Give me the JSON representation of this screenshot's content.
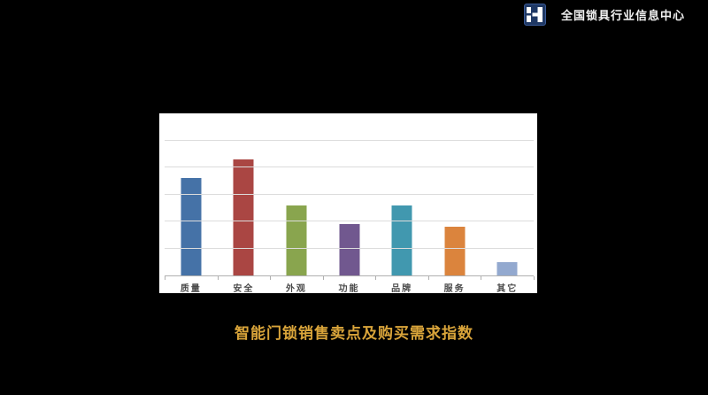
{
  "header": {
    "logo_text": "全国锁具行业信息中心",
    "logo_icon": "stylized-H-mark"
  },
  "caption": "智能门锁销售卖点及购买需求指数",
  "colors": {
    "background": "#000000",
    "panel": "#ffffff",
    "caption_text": "#d9a43a",
    "logo_square": "#1f3864",
    "logo_glyph": "#ffffff",
    "gridline": "#dcdcdc",
    "axis_line": "#b0b0b0",
    "axis_label": "#4a4a4a"
  },
  "chart_data": {
    "type": "bar",
    "title": "智能门锁销售卖点及购买需求指数",
    "categories": [
      "质量",
      "安全",
      "外观",
      "功能",
      "品牌",
      "服务",
      "其它"
    ],
    "values": [
      36,
      43,
      26,
      19,
      26,
      18,
      5
    ],
    "bar_colors": [
      "#4572A7",
      "#AA4643",
      "#89A54E",
      "#71588F",
      "#4198AF",
      "#DB843D",
      "#93A9CF"
    ],
    "xlabel": "",
    "ylabel": "",
    "ylim": [
      0,
      60
    ],
    "gridline_interval": 10,
    "grid": true,
    "legend_position": "none",
    "y_axis_labels_visible": false
  }
}
